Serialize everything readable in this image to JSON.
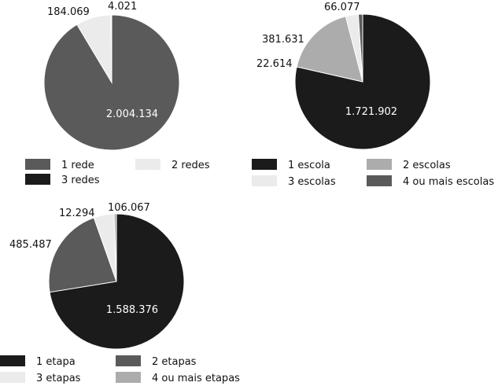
{
  "chart_data": [
    {
      "type": "pie",
      "slices": [
        {
          "name": "1 rede",
          "value": 2004134,
          "label": "2.004.134",
          "color": "#5a5a5a"
        },
        {
          "name": "2 redes",
          "value": 184069,
          "label": "184.069",
          "color": "#ebebeb"
        },
        {
          "name": "3 redes",
          "value": 4021,
          "label": "4.021",
          "color": "#1b1b1b"
        }
      ]
    },
    {
      "type": "pie",
      "slices": [
        {
          "name": "1 escola",
          "value": 1721902,
          "label": "1.721.902",
          "color": "#1b1b1b"
        },
        {
          "name": "2 escolas",
          "value": 381631,
          "label": "381.631",
          "color": "#acacac"
        },
        {
          "name": "3 escolas",
          "value": 66077,
          "label": "66.077",
          "color": "#ebebeb"
        },
        {
          "name": "4 ou mais escolas",
          "value": 22614,
          "label": "22.614",
          "color": "#5a5a5a"
        }
      ]
    },
    {
      "type": "pie",
      "slices": [
        {
          "name": "1 etapa",
          "value": 1588376,
          "label": "1.588.376",
          "color": "#1b1b1b"
        },
        {
          "name": "2 etapas",
          "value": 485487,
          "label": "485.487",
          "color": "#5a5a5a"
        },
        {
          "name": "3 etapas",
          "value": 106067,
          "label": "106.067",
          "color": "#ebebeb"
        },
        {
          "name": "4 ou mais etapas",
          "value": 12294,
          "label": "12.294",
          "color": "#acacac"
        }
      ]
    }
  ]
}
